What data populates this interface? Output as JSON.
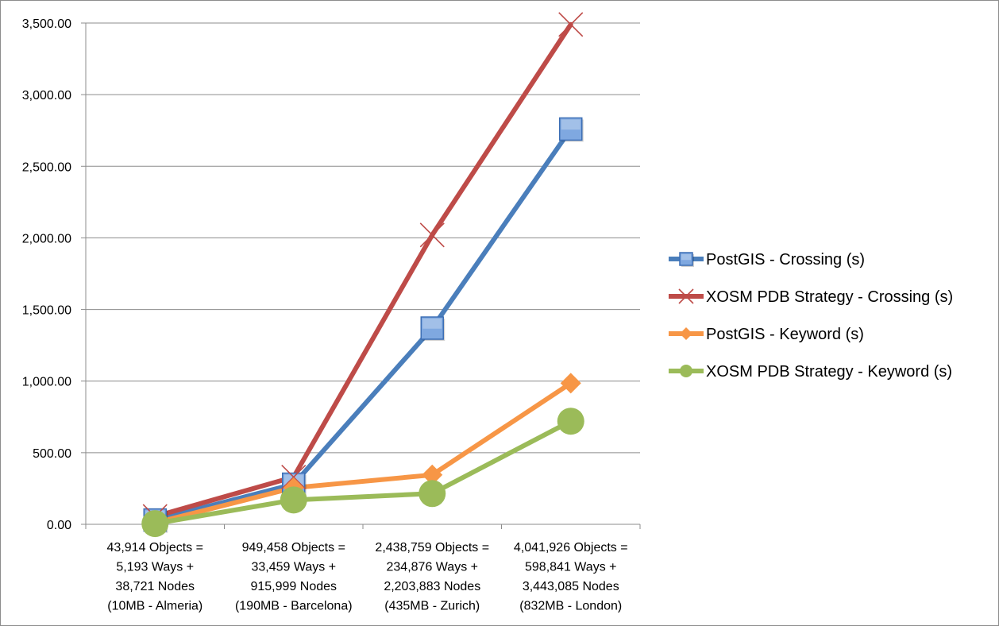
{
  "chart_data": {
    "type": "line",
    "title": "",
    "xlabel": "",
    "ylabel": "",
    "ylim": [
      0,
      3500
    ],
    "yticks": [
      "0.00",
      "500.00",
      "1,000.00",
      "1,500.00",
      "2,000.00",
      "2,500.00",
      "3,000.00",
      "3,500.00"
    ],
    "grid": "horizontal",
    "legend_position": "right",
    "categories": [
      [
        "43,914 Objects =",
        "5,193 Ways +",
        "38,721 Nodes",
        "(10MB - Almeria)"
      ],
      [
        "949,458 Objects =",
        "33,459 Ways +",
        "915,999 Nodes",
        "(190MB - Barcelona)"
      ],
      [
        "2,438,759 Objects =",
        "234,876 Ways +",
        "2,203,883 Nodes",
        "(435MB - Zurich)"
      ],
      [
        "4,041,926 Objects =",
        "598,841 Ways +",
        "3,443,085 Nodes",
        "(832MB - London)"
      ]
    ],
    "series": [
      {
        "name": "PostGIS - Crossing (s)",
        "values": [
          30,
          280,
          1370,
          2760
        ],
        "color": "#4a7ebb",
        "marker": "square"
      },
      {
        "name": "XOSM PDB Strategy - Crossing (s)",
        "values": [
          55,
          330,
          2020,
          3490
        ],
        "color": "#be4b48",
        "marker": "x"
      },
      {
        "name": "PostGIS - Keyword (s)",
        "values": [
          10,
          255,
          345,
          985
        ],
        "color": "#f79646",
        "marker": "diamond"
      },
      {
        "name": "XOSM PDB Strategy - Keyword (s)",
        "values": [
          5,
          170,
          215,
          720
        ],
        "color": "#9bbb59",
        "marker": "circle"
      }
    ]
  }
}
